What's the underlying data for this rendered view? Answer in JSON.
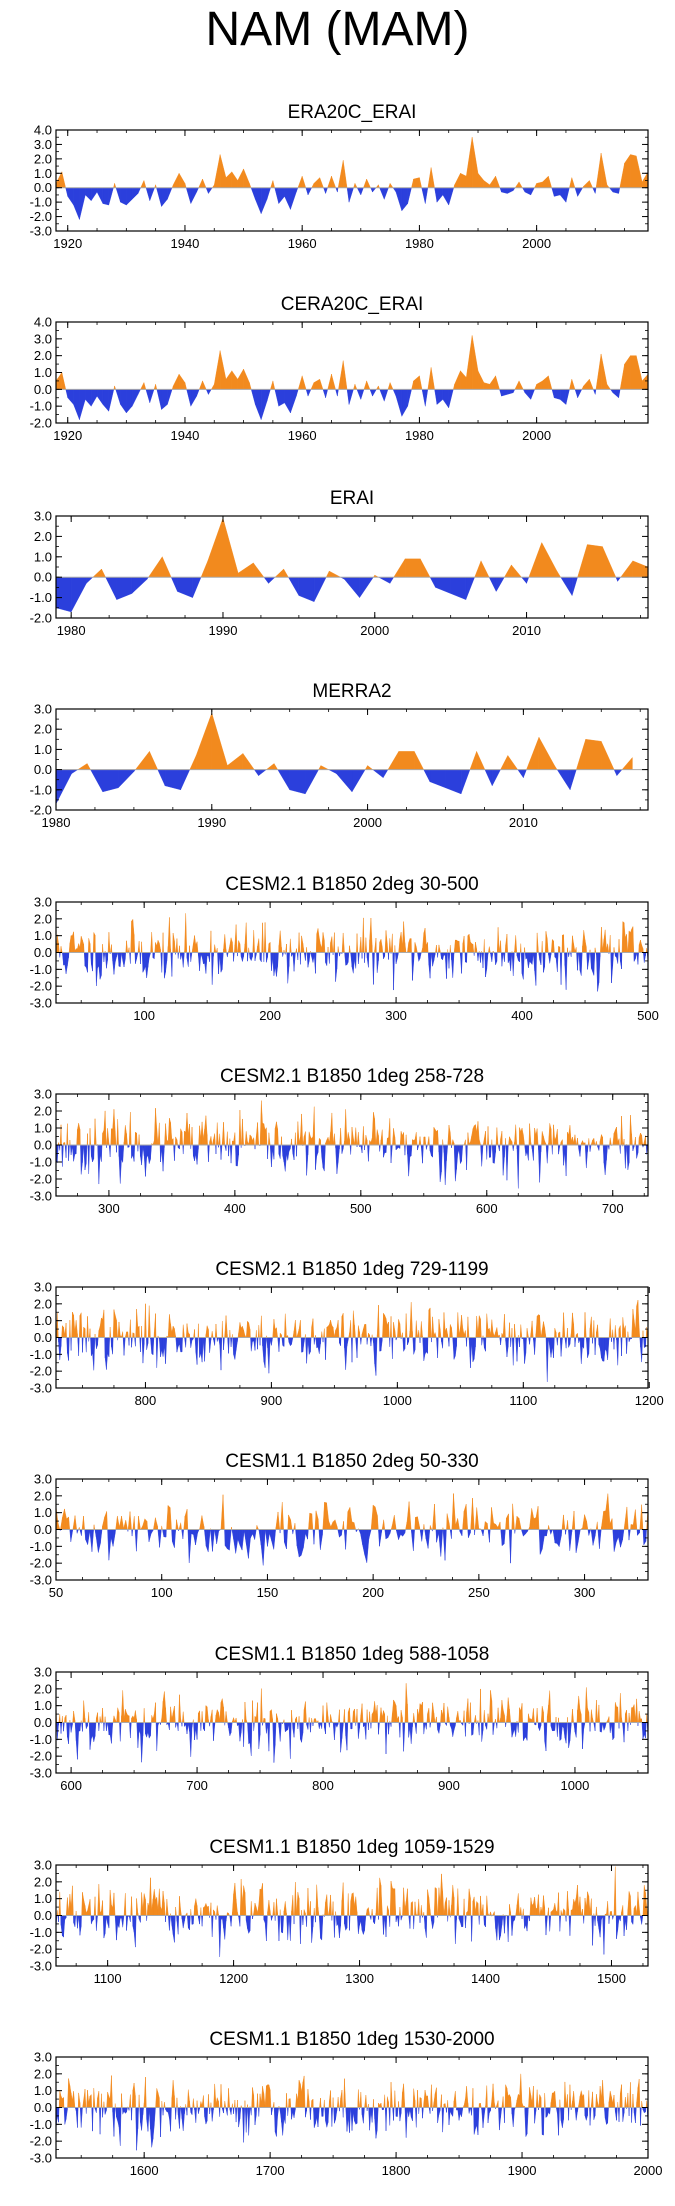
{
  "page": {
    "title": "NAM (MAM)"
  },
  "colors": {
    "positive": "#f28a1e",
    "negative": "#2b3fdc",
    "zero_line": "#aaaaaa",
    "frame": "#000000"
  },
  "chart_data": [
    {
      "type": "area",
      "title": "ERA20C_ERAI",
      "xlim": [
        1918,
        2019
      ],
      "ylim": [
        -3.0,
        4.0
      ],
      "yticks": [
        4.0,
        3.0,
        2.0,
        1.0,
        0.0,
        -1.0,
        -2.0,
        -3.0
      ],
      "ytick_labels": [
        "4.0",
        "3.0",
        "2.0",
        "1.0",
        "0.0",
        "-1.0",
        "-2.0",
        "-3.0"
      ],
      "xticks": [
        1920,
        1940,
        1960,
        1980,
        2000
      ],
      "xtick_labels": [
        "1920",
        "1940",
        "1960",
        "1980",
        "2000"
      ],
      "x": [
        1918,
        1919,
        1920,
        1921,
        1922,
        1923,
        1924,
        1925,
        1926,
        1927,
        1928,
        1929,
        1930,
        1931,
        1932,
        1933,
        1934,
        1935,
        1936,
        1937,
        1938,
        1939,
        1940,
        1941,
        1942,
        1943,
        1944,
        1945,
        1946,
        1947,
        1948,
        1949,
        1950,
        1951,
        1952,
        1953,
        1954,
        1955,
        1956,
        1957,
        1958,
        1959,
        1960,
        1961,
        1962,
        1963,
        1964,
        1965,
        1966,
        1967,
        1968,
        1969,
        1970,
        1971,
        1972,
        1973,
        1974,
        1975,
        1976,
        1977,
        1978,
        1979,
        1980,
        1981,
        1982,
        1983,
        1984,
        1985,
        1986,
        1987,
        1988,
        1989,
        1990,
        1991,
        1992,
        1993,
        1994,
        1995,
        1996,
        1997,
        1998,
        1999,
        2000,
        2001,
        2002,
        2003,
        2004,
        2005,
        2006,
        2007,
        2008,
        2009,
        2010,
        2011,
        2012,
        2013,
        2014,
        2015,
        2016,
        2017,
        2018,
        2019
      ],
      "values": [
        0.3,
        1.1,
        -0.6,
        -1.2,
        -2.2,
        -0.5,
        -0.9,
        -0.3,
        -1.1,
        -1.2,
        0.3,
        -1.0,
        -1.2,
        -0.8,
        -0.4,
        0.5,
        -0.9,
        0.2,
        -1.3,
        -0.8,
        0.2,
        1.0,
        0.3,
        -1.1,
        -0.3,
        0.6,
        -0.4,
        0.2,
        2.3,
        0.7,
        1.1,
        0.5,
        1.3,
        0.3,
        -0.8,
        -1.8,
        -0.8,
        0.5,
        -1.1,
        -0.6,
        -1.5,
        -0.3,
        0.8,
        -0.5,
        0.3,
        0.7,
        -0.4,
        0.8,
        -0.3,
        1.9,
        -1.0,
        0.3,
        -0.5,
        0.6,
        -0.3,
        0.2,
        -0.8,
        0.3,
        -0.3,
        -1.6,
        -1.1,
        0.6,
        0.7,
        -1.1,
        1.4,
        -1.0,
        -0.5,
        -1.2,
        0.2,
        1.0,
        0.8,
        3.5,
        1.0,
        0.5,
        0.2,
        0.8,
        -0.3,
        -0.4,
        -0.2,
        0.4,
        -0.3,
        -0.5,
        0.3,
        0.4,
        0.8,
        -0.6,
        -0.5,
        -1.0,
        0.7,
        -0.6,
        0.1,
        0.5,
        -0.4,
        2.4,
        0.2,
        -0.3,
        -0.4,
        1.7,
        2.3,
        2.2,
        0.4,
        1.1
      ]
    },
    {
      "type": "area",
      "title": "CERA20C_ERAI",
      "xlim": [
        1918,
        2019
      ],
      "ylim": [
        -2.0,
        4.0
      ],
      "yticks": [
        4.0,
        3.0,
        2.0,
        1.0,
        0.0,
        -1.0,
        -2.0
      ],
      "ytick_labels": [
        "4.0",
        "3.0",
        "2.0",
        "1.0",
        "0.0",
        "-1.0",
        "-2.0"
      ],
      "xticks": [
        1920,
        1940,
        1960,
        1980,
        2000
      ],
      "xtick_labels": [
        "1920",
        "1940",
        "1960",
        "1980",
        "2000"
      ],
      "x": [
        1918,
        1919,
        1920,
        1921,
        1922,
        1923,
        1924,
        1925,
        1926,
        1927,
        1928,
        1929,
        1930,
        1931,
        1932,
        1933,
        1934,
        1935,
        1936,
        1937,
        1938,
        1939,
        1940,
        1941,
        1942,
        1943,
        1944,
        1945,
        1946,
        1947,
        1948,
        1949,
        1950,
        1951,
        1952,
        1953,
        1954,
        1955,
        1956,
        1957,
        1958,
        1959,
        1960,
        1961,
        1962,
        1963,
        1964,
        1965,
        1966,
        1967,
        1968,
        1969,
        1970,
        1971,
        1972,
        1973,
        1974,
        1975,
        1976,
        1977,
        1978,
        1979,
        1980,
        1981,
        1982,
        1983,
        1984,
        1985,
        1986,
        1987,
        1988,
        1989,
        1990,
        1991,
        1992,
        1993,
        1994,
        1995,
        1996,
        1997,
        1998,
        1999,
        2000,
        2001,
        2002,
        2003,
        2004,
        2005,
        2006,
        2007,
        2008,
        2009,
        2010,
        2011,
        2012,
        2013,
        2014,
        2015,
        2016,
        2017,
        2018,
        2019
      ],
      "values": [
        0.5,
        1.0,
        -0.5,
        -0.9,
        -1.8,
        -0.6,
        -1.0,
        -0.4,
        -0.9,
        -1.3,
        0.2,
        -0.9,
        -1.4,
        -1.0,
        -0.3,
        0.4,
        -0.8,
        0.3,
        -1.2,
        -0.9,
        0.2,
        0.9,
        0.4,
        -1.0,
        -0.4,
        0.5,
        -0.3,
        0.3,
        2.3,
        0.6,
        1.1,
        0.6,
        1.2,
        0.4,
        -0.9,
        -1.8,
        -0.7,
        0.5,
        -1.0,
        -0.8,
        -1.4,
        -0.4,
        0.8,
        -0.4,
        0.4,
        0.6,
        -0.5,
        0.9,
        -0.4,
        1.7,
        -0.9,
        0.3,
        -0.6,
        0.5,
        -0.4,
        0.2,
        -0.7,
        0.4,
        -0.4,
        -1.6,
        -1.0,
        0.5,
        0.8,
        -1.0,
        1.3,
        -0.9,
        -0.6,
        -1.1,
        0.3,
        1.1,
        0.7,
        3.2,
        1.1,
        0.4,
        0.3,
        0.8,
        -0.4,
        -0.3,
        -0.2,
        0.5,
        -0.2,
        -0.6,
        0.3,
        0.5,
        0.8,
        -0.5,
        -0.6,
        -0.9,
        0.6,
        -0.5,
        0.2,
        0.6,
        -0.3,
        2.1,
        0.3,
        -0.2,
        -0.5,
        1.5,
        2.0,
        2.0,
        0.5,
        0.9
      ]
    },
    {
      "type": "area",
      "title": "ERAI",
      "xlim": [
        1979,
        2018
      ],
      "ylim": [
        -2.0,
        3.0
      ],
      "yticks": [
        3.0,
        2.0,
        1.0,
        0.0,
        -1.0,
        -2.0
      ],
      "ytick_labels": [
        "3.0",
        "2.0",
        "1.0",
        "0.0",
        "-1.0",
        "-2.0"
      ],
      "xticks": [
        1980,
        1990,
        2000,
        2010
      ],
      "xtick_labels": [
        "1980",
        "1990",
        "2000",
        "2010"
      ],
      "x": [
        1979,
        1980,
        1981,
        1982,
        1983,
        1984,
        1985,
        1986,
        1987,
        1988,
        1989,
        1990,
        1991,
        1992,
        1993,
        1994,
        1995,
        1996,
        1997,
        1998,
        1999,
        2000,
        2001,
        2002,
        2003,
        2004,
        2005,
        2006,
        2007,
        2008,
        2009,
        2010,
        2011,
        2012,
        2013,
        2014,
        2015,
        2016,
        2017,
        2018
      ],
      "values": [
        -1.5,
        -1.7,
        -0.3,
        0.4,
        -1.1,
        -0.8,
        -0.1,
        1.0,
        -0.7,
        -1.0,
        0.8,
        2.9,
        0.2,
        0.7,
        -0.3,
        0.4,
        -0.9,
        -1.2,
        0.3,
        -0.1,
        -1.0,
        0.1,
        -0.3,
        0.9,
        0.9,
        -0.5,
        -0.8,
        -1.1,
        0.8,
        -0.7,
        0.6,
        -0.3,
        1.7,
        0.3,
        -0.9,
        1.6,
        1.5,
        -0.2,
        0.8,
        0.5
      ]
    },
    {
      "type": "area",
      "title": "MERRA2",
      "xlim": [
        1980,
        2018
      ],
      "ylim": [
        -2.0,
        3.0
      ],
      "yticks": [
        3.0,
        2.0,
        1.0,
        0.0,
        -1.0,
        -2.0
      ],
      "ytick_labels": [
        "3.0",
        "2.0",
        "1.0",
        "0.0",
        "-1.0",
        "-2.0"
      ],
      "xticks": [
        1980,
        1990,
        2000,
        2010
      ],
      "xtick_labels": [
        "1980",
        "1990",
        "2000",
        "2010"
      ],
      "x": [
        1980,
        1981,
        1982,
        1983,
        1984,
        1985,
        1986,
        1987,
        1988,
        1989,
        1990,
        1991,
        1992,
        1993,
        1994,
        1995,
        1996,
        1997,
        1998,
        1999,
        2000,
        2001,
        2002,
        2003,
        2004,
        2005,
        2006,
        2007,
        2008,
        2009,
        2010,
        2011,
        2012,
        2013,
        2014,
        2015,
        2016,
        2017
      ],
      "values": [
        -1.7,
        -0.2,
        0.3,
        -1.1,
        -0.9,
        -0.1,
        0.9,
        -0.8,
        -1.0,
        0.7,
        2.8,
        0.2,
        0.8,
        -0.3,
        0.3,
        -1.0,
        -1.2,
        0.2,
        -0.2,
        -1.1,
        0.2,
        -0.4,
        0.9,
        0.9,
        -0.6,
        -0.9,
        -1.2,
        0.9,
        -0.8,
        0.7,
        -0.4,
        1.6,
        0.2,
        -1.0,
        1.5,
        1.4,
        -0.3,
        0.6
      ]
    },
    {
      "type": "area",
      "title": "CESM2.1 B1850 2deg 30-500",
      "xlim": [
        30,
        500
      ],
      "ylim": [
        -3.0,
        3.0
      ],
      "yticks": [
        3.0,
        2.0,
        1.0,
        0.0,
        -1.0,
        -2.0,
        -3.0
      ],
      "ytick_labels": [
        "3.0",
        "2.0",
        "1.0",
        "0.0",
        "-1.0",
        "-2.0",
        "-3.0"
      ],
      "xticks": [
        100,
        200,
        300,
        400,
        500
      ],
      "xtick_labels": [
        "100",
        "200",
        "300",
        "400",
        "500"
      ],
      "x_start": 30,
      "x_end": 500,
      "series_seed": 11,
      "amplitude": 1.0
    },
    {
      "type": "area",
      "title": "CESM2.1 B1850 1deg 258-728",
      "xlim": [
        258,
        728
      ],
      "ylim": [
        -3.0,
        3.0
      ],
      "yticks": [
        3.0,
        2.0,
        1.0,
        0.0,
        -1.0,
        -2.0,
        -3.0
      ],
      "ytick_labels": [
        "3.0",
        "2.0",
        "1.0",
        "0.0",
        "-1.0",
        "-2.0",
        "-3.0"
      ],
      "xticks": [
        300,
        400,
        500,
        600,
        700
      ],
      "xtick_labels": [
        "300",
        "400",
        "500",
        "600",
        "700"
      ],
      "x_start": 258,
      "x_end": 728,
      "series_seed": 23,
      "amplitude": 1.0
    },
    {
      "type": "area",
      "title": "CESM2.1 B1850 1deg 729-1199",
      "xlim": [
        729,
        1199
      ],
      "ylim": [
        -3.0,
        3.0
      ],
      "yticks": [
        3.0,
        2.0,
        1.0,
        0.0,
        -1.0,
        -2.0,
        -3.0
      ],
      "ytick_labels": [
        "3.0",
        "2.0",
        "1.0",
        "0.0",
        "-1.0",
        "-2.0",
        "-3.0"
      ],
      "xticks": [
        800,
        900,
        1000,
        1100,
        1200
      ],
      "xtick_labels": [
        "800",
        "900",
        "1000",
        "1100",
        "1200"
      ],
      "x_start": 729,
      "x_end": 1199,
      "series_seed": 37,
      "amplitude": 1.0
    },
    {
      "type": "area",
      "title": "CESM1.1 B1850 2deg 50-330",
      "xlim": [
        50,
        330
      ],
      "ylim": [
        -3.0,
        3.0
      ],
      "yticks": [
        3.0,
        2.0,
        1.0,
        0.0,
        -1.0,
        -2.0,
        -3.0
      ],
      "ytick_labels": [
        "3.0",
        "2.0",
        "1.0",
        "0.0",
        "-1.0",
        "-2.0",
        "-3.0"
      ],
      "xticks": [
        50,
        100,
        150,
        200,
        250,
        300
      ],
      "xtick_labels": [
        "50",
        "100",
        "150",
        "200",
        "250",
        "300"
      ],
      "x_start": 50,
      "x_end": 330,
      "series_seed": 41,
      "amplitude": 1.0
    },
    {
      "type": "area",
      "title": "CESM1.1 B1850 1deg 588-1058",
      "xlim": [
        588,
        1058
      ],
      "ylim": [
        -3.0,
        3.0
      ],
      "yticks": [
        3.0,
        2.0,
        1.0,
        0.0,
        -1.0,
        -2.0,
        -3.0
      ],
      "ytick_labels": [
        "3.0",
        "2.0",
        "1.0",
        "0.0",
        "-1.0",
        "-2.0",
        "-3.0"
      ],
      "xticks": [
        600,
        700,
        800,
        900,
        1000
      ],
      "xtick_labels": [
        "600",
        "700",
        "800",
        "900",
        "1000"
      ],
      "x_start": 588,
      "x_end": 1058,
      "series_seed": 53,
      "amplitude": 1.0
    },
    {
      "type": "area",
      "title": "CESM1.1 B1850 1deg 1059-1529",
      "xlim": [
        1059,
        1529
      ],
      "ylim": [
        -3.0,
        3.0
      ],
      "yticks": [
        3.0,
        2.0,
        1.0,
        0.0,
        -1.0,
        -2.0,
        -3.0
      ],
      "ytick_labels": [
        "3.0",
        "2.0",
        "1.0",
        "0.0",
        "-1.0",
        "-2.0",
        "-3.0"
      ],
      "xticks": [
        1100,
        1200,
        1300,
        1400,
        1500
      ],
      "xtick_labels": [
        "1100",
        "1200",
        "1300",
        "1400",
        "1500"
      ],
      "x_start": 1059,
      "x_end": 1529,
      "series_seed": 67,
      "amplitude": 1.0
    },
    {
      "type": "area",
      "title": "CESM1.1 B1850 1deg 1530-2000",
      "xlim": [
        1530,
        2000
      ],
      "ylim": [
        -3.0,
        3.0
      ],
      "yticks": [
        3.0,
        2.0,
        1.0,
        0.0,
        -1.0,
        -2.0,
        -3.0
      ],
      "ytick_labels": [
        "3.0",
        "2.0",
        "1.0",
        "0.0",
        "-1.0",
        "-2.0",
        "-3.0"
      ],
      "xticks": [
        1600,
        1700,
        1800,
        1900,
        2000
      ],
      "xtick_labels": [
        "1600",
        "1700",
        "1800",
        "1900",
        "2000"
      ],
      "x_start": 1530,
      "x_end": 2000,
      "series_seed": 79,
      "amplitude": 1.0
    }
  ]
}
